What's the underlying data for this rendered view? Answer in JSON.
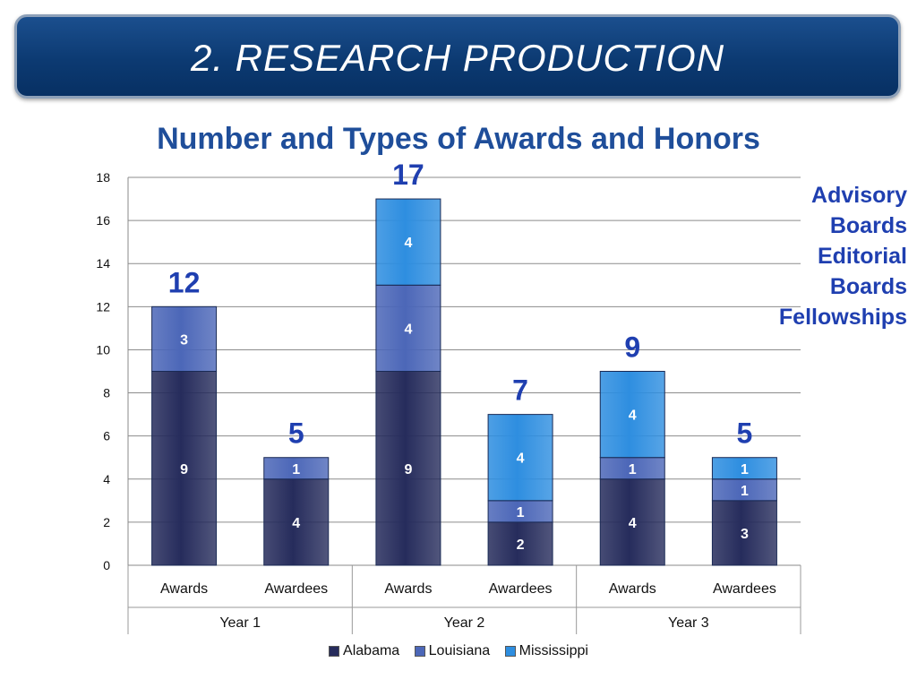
{
  "slide": {
    "banner_title": "2. RESEARCH PRODUCTION"
  },
  "side_note": {
    "lines": [
      "Advisory",
      "Boards",
      "Editorial",
      "Boards",
      "Fellowships"
    ]
  },
  "colors": {
    "Alabama": "#262c5c",
    "Louisiana": "#4c67b8",
    "Mississippi": "#2e8ee0",
    "title": "#1f4e9a",
    "total_label": "#1f3fb0",
    "banner": "#0c3a72"
  },
  "chart_data": {
    "type": "bar",
    "stacked": true,
    "title": "Number and Types of Awards and Honors",
    "xlabel": "",
    "ylabel": "",
    "ylim": [
      0,
      18
    ],
    "yticks": [
      0,
      2,
      4,
      6,
      8,
      10,
      12,
      14,
      16,
      18
    ],
    "grid": true,
    "legend_position": "bottom",
    "groups": [
      "Year 1",
      "Year 2",
      "Year 3"
    ],
    "categories": [
      "Awards",
      "Awardees",
      "Awards",
      "Awardees",
      "Awards",
      "Awardees"
    ],
    "category_group": [
      0,
      0,
      1,
      1,
      2,
      2
    ],
    "series": [
      {
        "name": "Alabama",
        "values": [
          9,
          4,
          9,
          2,
          4,
          3
        ]
      },
      {
        "name": "Louisiana",
        "values": [
          3,
          1,
          4,
          1,
          1,
          1
        ]
      },
      {
        "name": "Mississippi",
        "values": [
          0,
          0,
          4,
          4,
          4,
          1
        ]
      }
    ],
    "totals": [
      12,
      5,
      17,
      7,
      9,
      5
    ]
  }
}
